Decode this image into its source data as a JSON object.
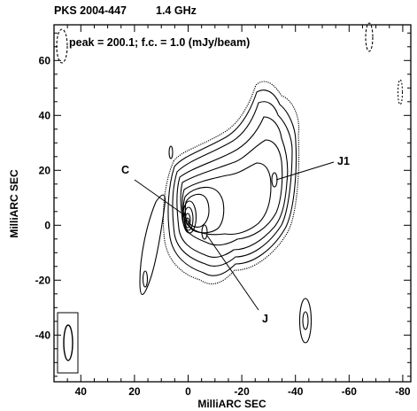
{
  "chart_data": {
    "type": "contour",
    "title_source": "PKS 2004-447",
    "title_freq": "1.4 GHz",
    "annotation": "peak = 200.1;  f.c. = 1.0 (mJy/beam)",
    "xlabel": "MilliARC SEC",
    "ylabel": "MilliARC SEC",
    "xlim": [
      50,
      -83
    ],
    "ylim": [
      -57,
      73
    ],
    "x_ticks": [
      "40",
      "20",
      "0",
      "-20",
      "-40",
      "-60",
      "-80"
    ],
    "y_ticks": [
      "60",
      "40",
      "20",
      "0",
      "-20",
      "-40"
    ],
    "peak_mJy_per_beam": 200.1,
    "first_contour_mJy_per_beam": 1.0,
    "components": [
      {
        "label": "C",
        "x": 0,
        "y": 0
      },
      {
        "label": "J",
        "x": -8,
        "y": -4
      },
      {
        "label": "J1",
        "x": -32,
        "y": 17
      }
    ],
    "beam": {
      "major_mas": 14,
      "minor_mas": 4,
      "center": [
        43,
        -43
      ]
    },
    "colors": {
      "ink": "#000000",
      "background": "#ffffff"
    }
  }
}
